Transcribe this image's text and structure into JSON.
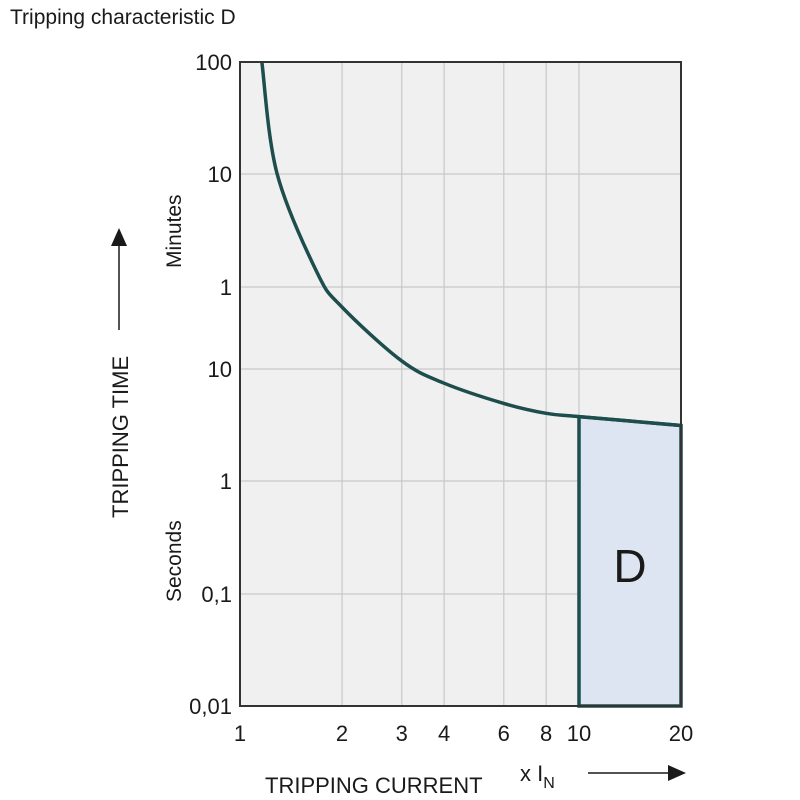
{
  "chart_data": {
    "type": "line",
    "title": "Tripping characteristic D",
    "xlabel": "TRIPPING CURRENT",
    "xunit_prefix": "x I",
    "xunit_sub": "N",
    "ylabel": "TRIPPING TIME",
    "ylabel_minutes": "Minutes",
    "ylabel_seconds": "Seconds",
    "x_scale": "log",
    "y_scale": "log",
    "xlim": [
      1,
      20
    ],
    "ylim_seconds": [
      0.01,
      6000
    ],
    "grid": true,
    "x_ticks": [
      {
        "value": 1,
        "label": "1"
      },
      {
        "value": 2,
        "label": "2"
      },
      {
        "value": 3,
        "label": "3"
      },
      {
        "value": 4,
        "label": "4"
      },
      {
        "value": 6,
        "label": "6"
      },
      {
        "value": 8,
        "label": "8"
      },
      {
        "value": 10,
        "label": "10"
      },
      {
        "value": 20,
        "label": "20"
      }
    ],
    "y_ticks": [
      {
        "seconds": 6000,
        "label": "100"
      },
      {
        "seconds": 600,
        "label": "10"
      },
      {
        "seconds": 60,
        "label": "1"
      },
      {
        "seconds": 10,
        "label": "10"
      },
      {
        "seconds": 1,
        "label": "1"
      },
      {
        "seconds": 0.1,
        "label": "0,1"
      },
      {
        "seconds": 0.01,
        "label": "0,01"
      }
    ],
    "curve": {
      "x": [
        1.16,
        1.285,
        1.69,
        2.0,
        3.0,
        4.0,
        6.0,
        8.0,
        10.0,
        20.0
      ],
      "t_seconds": [
        6000,
        606,
        77,
        38,
        12.5,
        7.9,
        5.2,
        4.24,
        3.96,
        3.3
      ]
    },
    "region": {
      "label": "D",
      "x_from": 10,
      "x_to": 20,
      "t_bottom_seconds": 0.01
    },
    "colors": {
      "curve": "#1e4d4d",
      "plot_bg": "#f0f0f0",
      "grid": "#c8c8c8",
      "region_fill": "#dde4f2"
    }
  }
}
